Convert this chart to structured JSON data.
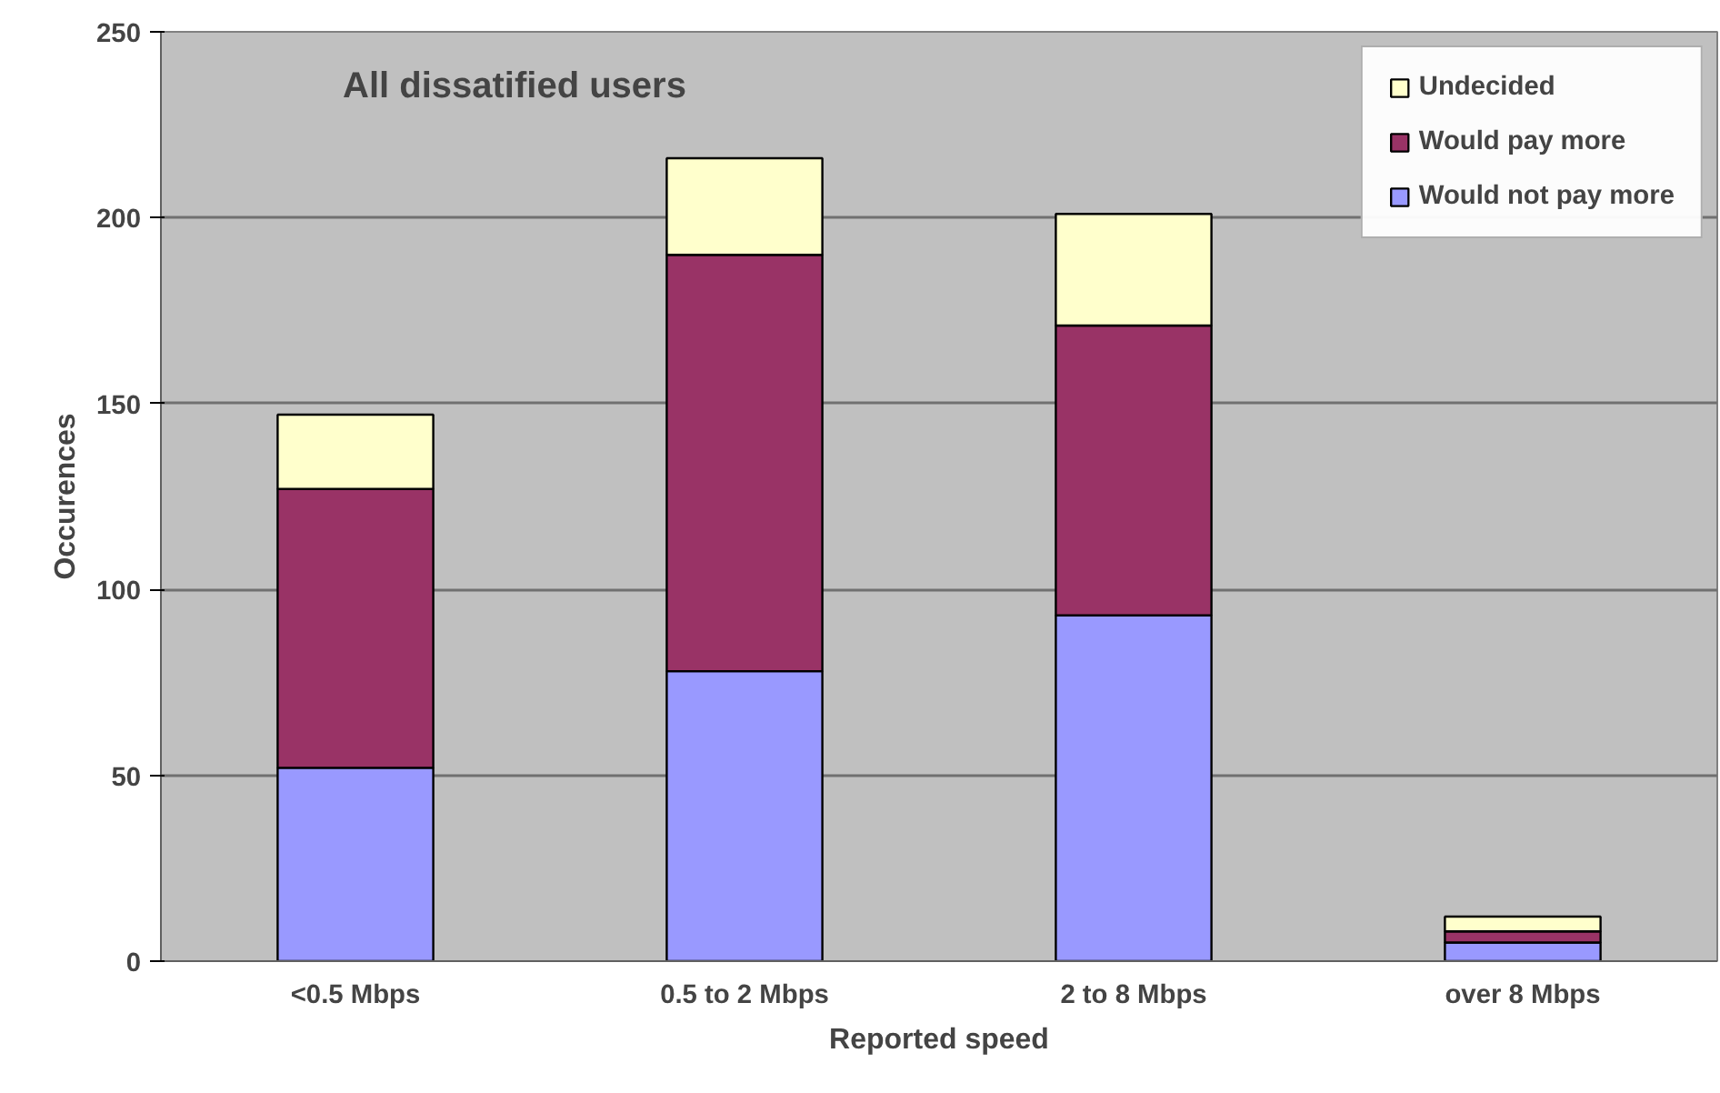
{
  "chart_data": {
    "type": "bar",
    "title": "All dissatified users",
    "xlabel": "Reported speed",
    "ylabel": "Occurences",
    "categories": [
      "<0.5 Mbps",
      "0.5 to 2 Mbps",
      "2 to 8 Mbps",
      "over 8 Mbps"
    ],
    "stacked": true,
    "series": [
      {
        "name": "Would not pay more",
        "color": "#9999ff",
        "values": [
          52,
          78,
          93,
          5
        ]
      },
      {
        "name": "Would pay more",
        "color": "#993366",
        "values": [
          75,
          112,
          78,
          3
        ]
      },
      {
        "name": "Undecided",
        "color": "#ffffcc",
        "values": [
          20,
          26,
          30,
          4
        ]
      }
    ],
    "ylim": [
      0,
      250
    ],
    "yticks": [
      0,
      50,
      100,
      150,
      200,
      250
    ],
    "grid": "y",
    "legend": "top right"
  }
}
